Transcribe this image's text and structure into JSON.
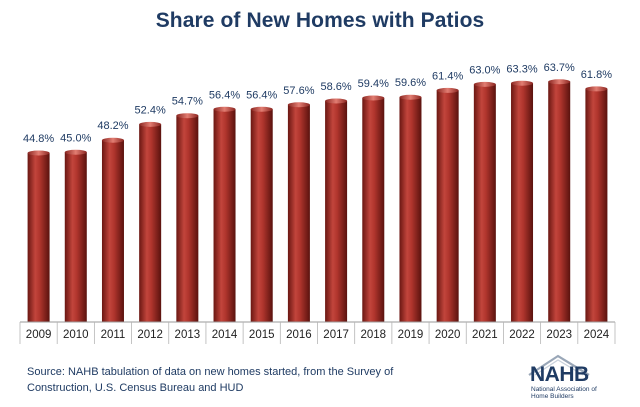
{
  "chart_data": {
    "type": "bar",
    "title": "Share of New Homes with Patios",
    "categories": [
      "2009",
      "2010",
      "2011",
      "2012",
      "2013",
      "2014",
      "2015",
      "2016",
      "2017",
      "2018",
      "2019",
      "2020",
      "2021",
      "2022",
      "2023",
      "2024"
    ],
    "values": [
      44.8,
      45.0,
      48.2,
      52.4,
      54.7,
      56.4,
      56.4,
      57.6,
      58.6,
      59.4,
      59.6,
      61.4,
      63.0,
      63.3,
      63.7,
      61.8
    ],
    "data_labels": [
      "44.8%",
      "45.0%",
      "48.2%",
      "52.4%",
      "54.7%",
      "56.4%",
      "56.4%",
      "57.6%",
      "58.6%",
      "59.4%",
      "59.6%",
      "61.4%",
      "63.0%",
      "63.3%",
      "63.7%",
      "61.8%"
    ],
    "xlabel": "",
    "ylabel": "",
    "ylim": [
      0,
      70
    ],
    "grid": false,
    "colors": {
      "bar": "#a8302a",
      "bar_light": "#d8695f",
      "bar_dark": "#5e1410",
      "label": "#1f3b63",
      "axis": "#9a9a9a"
    }
  },
  "source": "Source: NAHB tabulation of data on new homes started, from the Survey of Construction, U.S. Census Bureau and HUD",
  "logo": {
    "text": "NAHB",
    "tagline": "National Association of Home Builders"
  }
}
